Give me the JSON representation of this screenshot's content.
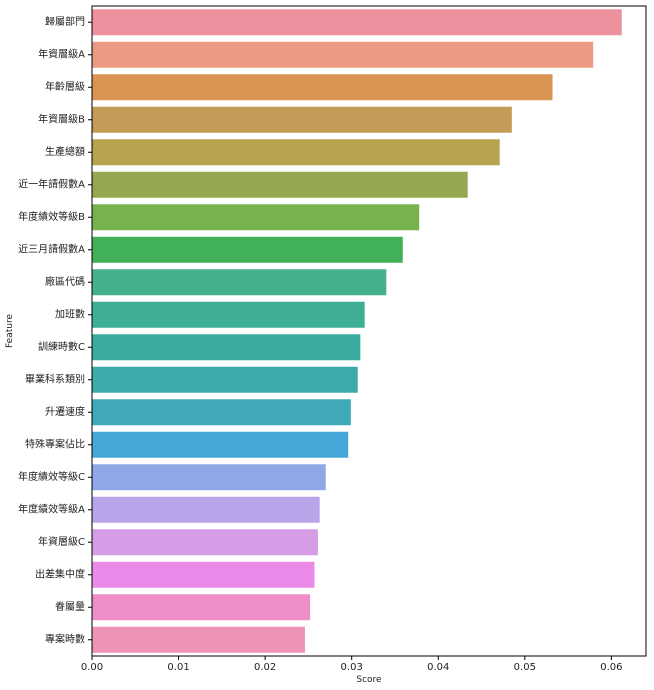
{
  "chart_data": {
    "type": "bar",
    "orientation": "horizontal",
    "xlabel": "Score",
    "ylabel": "Feature",
    "xlim": [
      0,
      0.064
    ],
    "xticks": [
      "0.00",
      "0.01",
      "0.02",
      "0.03",
      "0.04",
      "0.05",
      "0.06"
    ],
    "xtick_values": [
      0,
      0.01,
      0.02,
      0.03,
      0.04,
      0.05,
      0.06
    ],
    "grid": false,
    "categories": [
      "歸屬部門",
      "年資層級A",
      "年齡層級",
      "年資層級B",
      "生產總額",
      "近一年請假數A",
      "年度績效等級B",
      "近三月請假數A",
      "廠區代碼",
      "加班數",
      "訓練時數C",
      "畢業科系類別",
      "升遷速度",
      "特殊專案佔比",
      "年度績效等級C",
      "年度績效等級A",
      "年資層級C",
      "出差集中度",
      "眷屬量",
      "專案時數"
    ],
    "values": [
      0.0612,
      0.0579,
      0.0532,
      0.0485,
      0.0471,
      0.0434,
      0.0378,
      0.0359,
      0.034,
      0.0315,
      0.031,
      0.0307,
      0.0299,
      0.0296,
      0.027,
      0.0263,
      0.0261,
      0.0257,
      0.0252,
      0.0246
    ],
    "colors": [
      "#ee919e",
      "#ec9a84",
      "#da9352",
      "#c39d57",
      "#b7a451",
      "#96a84f",
      "#78b24e",
      "#42b057",
      "#45b18a",
      "#3eaf95",
      "#3cab9f",
      "#3ca9aa",
      "#3fa9ba",
      "#46a8d8",
      "#8fa9e8",
      "#b8a4e8",
      "#d69ce6",
      "#eb8ae9",
      "#ee8ec9",
      "#ec93b6"
    ]
  }
}
